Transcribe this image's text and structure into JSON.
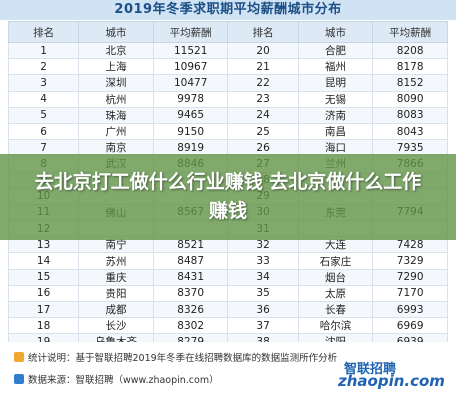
{
  "title": "2019年冬季求职期平均薪酬城市分布",
  "table": {
    "headers": [
      "排名",
      "城市",
      "平均薪酬",
      "排名",
      "城市",
      "平均薪酬"
    ],
    "rows": [
      [
        "1",
        "北京",
        "11521",
        "20",
        "合肥",
        "8208"
      ],
      [
        "2",
        "上海",
        "10967",
        "21",
        "福州",
        "8178"
      ],
      [
        "3",
        "深圳",
        "10477",
        "22",
        "昆明",
        "8152"
      ],
      [
        "4",
        "杭州",
        "9978",
        "23",
        "无锡",
        "8090"
      ],
      [
        "5",
        "珠海",
        "9465",
        "24",
        "济南",
        "8083"
      ],
      [
        "6",
        "广州",
        "9150",
        "25",
        "南昌",
        "8043"
      ],
      [
        "7",
        "南京",
        "8919",
        "26",
        "海口",
        "7935"
      ],
      [
        "8",
        "武汉",
        "8846",
        "27",
        "兰州",
        "7866"
      ],
      [
        "9",
        "",
        "",
        "28",
        "",
        ""
      ],
      [
        "10",
        "",
        "",
        "29",
        "",
        ""
      ],
      [
        "11",
        "佛山",
        "8567",
        "30",
        "东莞",
        "7794"
      ],
      [
        "12",
        "",
        "",
        "31",
        "",
        ""
      ],
      [
        "13",
        "南宁",
        "8521",
        "32",
        "大连",
        "7428"
      ],
      [
        "14",
        "苏州",
        "8487",
        "33",
        "石家庄",
        "7329"
      ],
      [
        "15",
        "重庆",
        "8431",
        "34",
        "烟台",
        "7290"
      ],
      [
        "16",
        "贵阳",
        "8370",
        "35",
        "太原",
        "7170"
      ],
      [
        "17",
        "成都",
        "8326",
        "36",
        "长春",
        "6993"
      ],
      [
        "18",
        "长沙",
        "8302",
        "37",
        "哈尔滨",
        "6969"
      ],
      [
        "19",
        "乌鲁木齐",
        "8279",
        "38",
        "沈阳",
        "6939"
      ]
    ]
  },
  "overlay_text": "去北京打工做什么行业赚钱 去北京做什么工作赚钱",
  "footer": {
    "stats_note": "统计说明：基于智联招聘2019年冬季在线招聘数据库的数据监测所作分析",
    "source_note": "数据来源：智联招聘（www.zhaopin.com）",
    "logo_text": "智联招聘",
    "logo_url": "zhaopin.com"
  },
  "colors": {
    "title_text": "#1d4f86",
    "header_bg": "#dde9f5",
    "overlay": "#629446",
    "logo": "#1e63b4",
    "stats_icon": "#f0a830",
    "source_icon": "#2f7fd0"
  }
}
